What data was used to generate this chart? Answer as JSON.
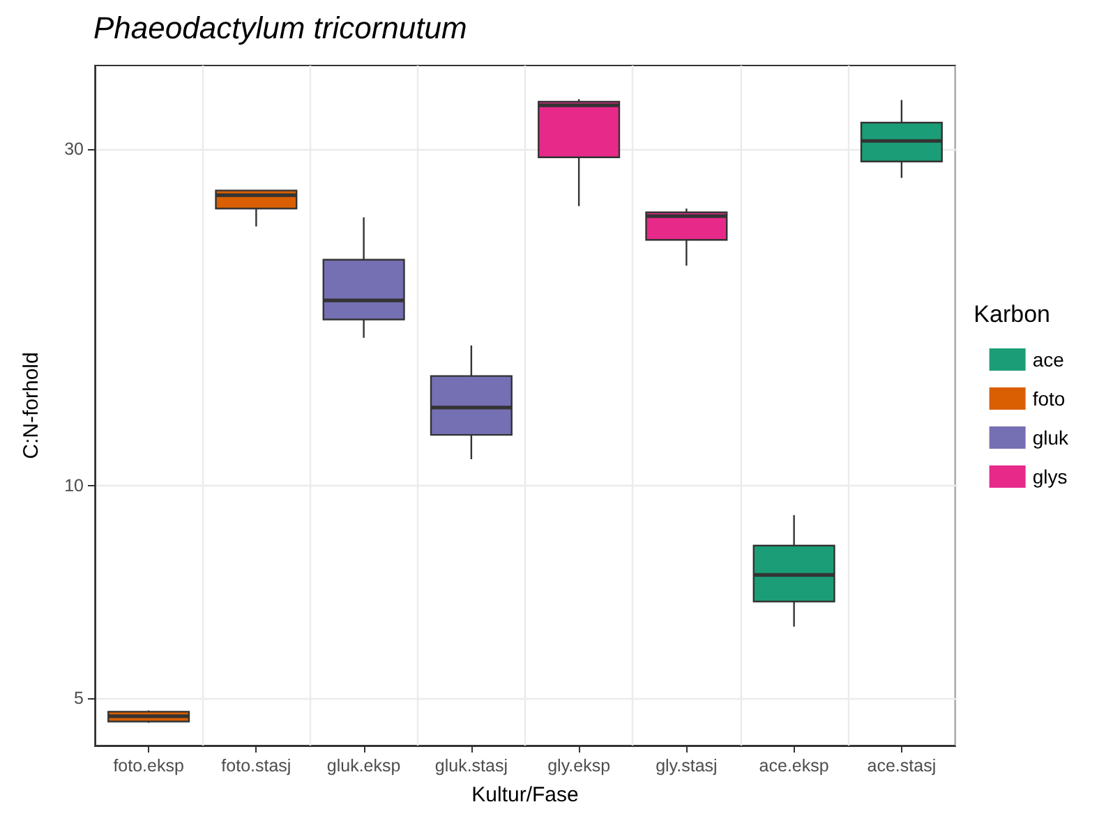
{
  "chart_data": {
    "type": "box",
    "title": "Phaeodactylum tricornutum",
    "xlabel": "Kultur/Fase",
    "ylabel": "C:N-forhold",
    "legend_title": "Karbon",
    "categories": [
      "foto.eksp",
      "foto.stasj",
      "gluk.eksp",
      "gluk.stasj",
      "gly.eksp",
      "gly.stasj",
      "ace.eksp",
      "ace.stasj"
    ],
    "series": [
      {
        "name": "ace",
        "color": "#1b9e77",
        "boxes": [
          null,
          null,
          null,
          null,
          null,
          null,
          {
            "low": 6.31,
            "q1": 6.85,
            "median": 7.47,
            "q3": 8.22,
            "high": 9.08
          },
          {
            "low": 27.3,
            "q1": 28.8,
            "median": 30.8,
            "q3": 32.7,
            "high": 35.2
          }
        ]
      },
      {
        "name": "foto",
        "color": "#d95f02",
        "boxes": [
          {
            "low": 4.61,
            "q1": 4.63,
            "median": 4.71,
            "q3": 4.78,
            "high": 4.8
          },
          {
            "low": 23.3,
            "q1": 24.7,
            "median": 25.8,
            "q3": 26.2,
            "high": 26.2
          },
          null,
          null,
          null,
          null,
          null,
          null
        ]
      },
      {
        "name": "gluk",
        "color": "#7570b3",
        "boxes": [
          null,
          null,
          {
            "low": 16.2,
            "q1": 17.2,
            "median": 18.3,
            "q3": 20.9,
            "high": 24.0
          },
          {
            "low": 10.9,
            "q1": 11.8,
            "median": 12.9,
            "q3": 14.3,
            "high": 15.8
          },
          null,
          null,
          null,
          null
        ]
      },
      {
        "name": "glys",
        "color": "#e7298a",
        "boxes": [
          null,
          null,
          null,
          null,
          {
            "low": 24.9,
            "q1": 29.2,
            "median": 34.6,
            "q3": 35.0,
            "high": 35.3
          },
          {
            "low": 20.5,
            "q1": 22.3,
            "median": 24.1,
            "q3": 24.4,
            "high": 24.7
          },
          null,
          null
        ]
      }
    ],
    "log": "y",
    "ylim": [
      4.28,
      39.4
    ],
    "yticks": [
      5,
      10,
      30
    ],
    "grid": true,
    "legend": "right"
  }
}
